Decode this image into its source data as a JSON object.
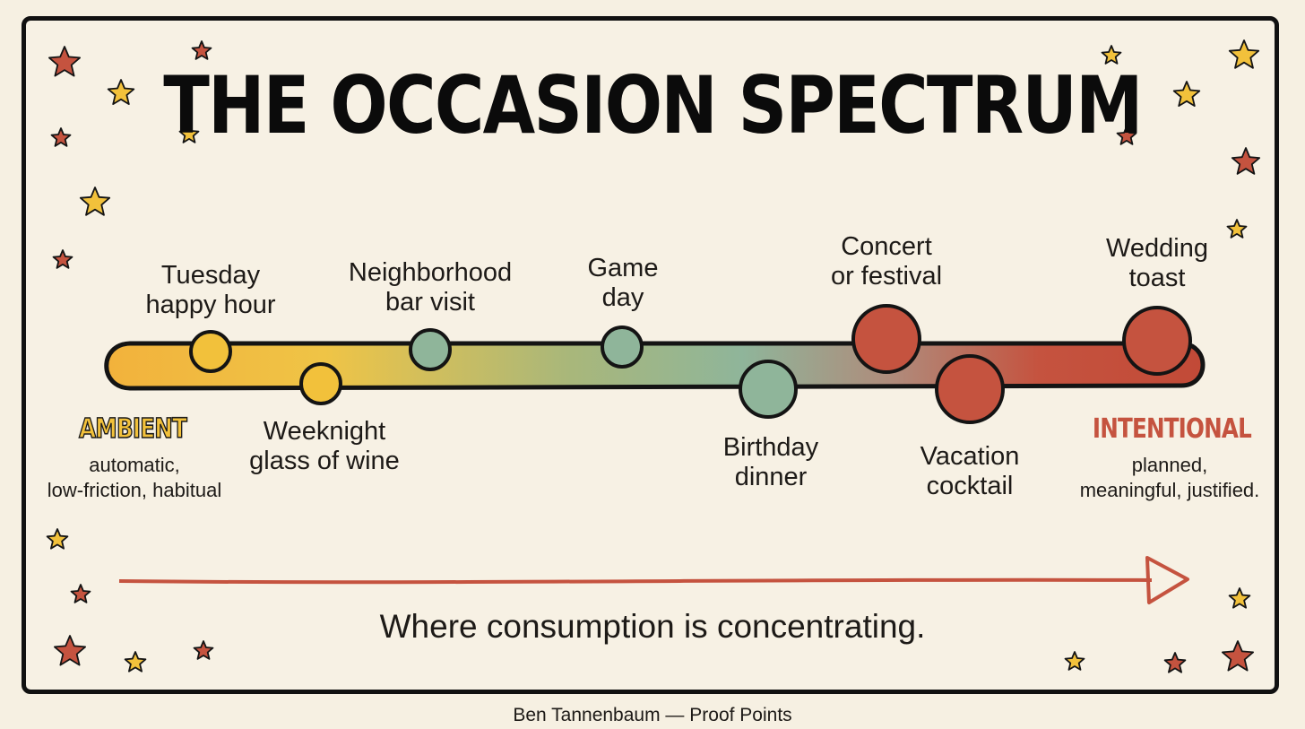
{
  "title": "THE OCCASION SPECTRUM",
  "colors": {
    "ambient": "#f2c13b",
    "ambient_mid": "#e8c44a",
    "neutral": "#8fb59a",
    "intentional": "#c5533f",
    "background": "#f7f1e4"
  },
  "spectrum": {
    "start": {
      "title": "AMBIENT",
      "description": [
        "automatic,",
        "low-friction, habitual"
      ]
    },
    "end": {
      "title": "INTENTIONAL",
      "description": [
        "planned,",
        "meaningful, justified."
      ]
    }
  },
  "occasions": [
    {
      "lines": [
        "Tuesday",
        "happy hour"
      ],
      "position": "above",
      "size": "small",
      "color": "#f2c13b"
    },
    {
      "lines": [
        "Weeknight",
        "glass of wine"
      ],
      "position": "below",
      "size": "small",
      "color": "#f2c13b"
    },
    {
      "lines": [
        "Neighborhood",
        "bar visit"
      ],
      "position": "above",
      "size": "small",
      "color": "#8fb59a"
    },
    {
      "lines": [
        "Game",
        "day"
      ],
      "position": "above",
      "size": "small",
      "color": "#8fb59a"
    },
    {
      "lines": [
        "Birthday",
        "dinner"
      ],
      "position": "below",
      "size": "medium",
      "color": "#8fb59a"
    },
    {
      "lines": [
        "Concert",
        "or festival"
      ],
      "position": "above",
      "size": "large",
      "color": "#c5533f"
    },
    {
      "lines": [
        "Vacation",
        "cocktail"
      ],
      "position": "below",
      "size": "large",
      "color": "#c5533f"
    },
    {
      "lines": [
        "Wedding",
        "toast"
      ],
      "position": "above",
      "size": "large",
      "color": "#c5533f"
    }
  ],
  "arrow_caption": "Where consumption is concentrating.",
  "credit": "Ben Tannenbaum — Proof Points"
}
